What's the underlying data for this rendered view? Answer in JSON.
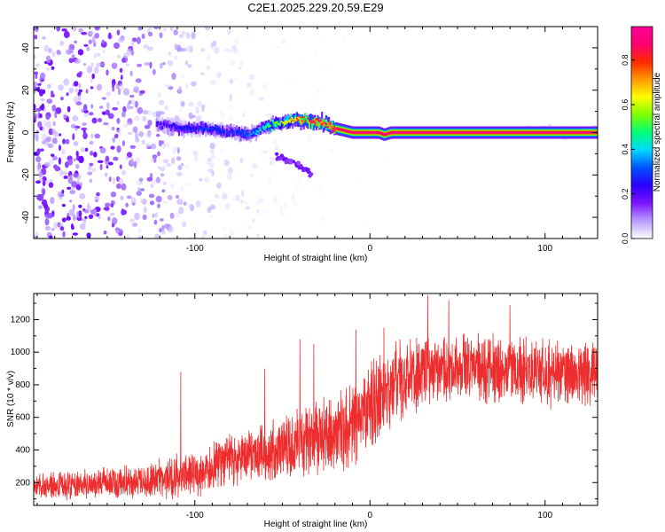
{
  "title": "C2E1.2025.229.20.59.E29",
  "chart_data": [
    {
      "type": "heatmap",
      "xlabel": "Height of straight line (km)",
      "ylabel": "Frequency (Hz)",
      "xlim": [
        -192,
        130
      ],
      "ylim": [
        -50,
        50
      ],
      "x_tick_values": [
        -100,
        0,
        100
      ],
      "x_tick_labels": [
        "-100",
        "0",
        "100"
      ],
      "y_tick_values": [
        -40,
        -20,
        0,
        20,
        40
      ],
      "y_tick_labels": [
        "-40",
        "-20",
        "0",
        "20",
        "40"
      ],
      "colorbar": {
        "label": "Normalized spectral amplitude",
        "range": [
          0,
          0.95
        ],
        "tick_values": [
          0.0,
          0.2,
          0.4,
          0.6,
          0.8
        ],
        "tick_labels": [
          "0.0",
          "0.2",
          "0.4",
          "0.6",
          "0.8"
        ],
        "colormap": [
          "#ffffff",
          "#b99dff",
          "#7a14ff",
          "#2a00ff",
          "#0050ff",
          "#00d8ff",
          "#00ff7a",
          "#7cff00",
          "#ffff00",
          "#ff9a00",
          "#ff2a00",
          "#ff0070",
          "#ff0099"
        ]
      },
      "ridge": {
        "x": [
          -122,
          -115,
          -105,
          -95,
          -85,
          -75,
          -68,
          -62,
          -55,
          -48,
          -42,
          -38,
          -32,
          -25,
          -20,
          -15,
          -10,
          -5,
          0,
          5,
          8,
          12,
          20,
          40,
          70,
          100,
          130
        ],
        "frequency": [
          4,
          3,
          2,
          2,
          1,
          0,
          -1,
          2,
          4,
          5,
          6,
          6,
          5,
          4,
          2,
          1,
          0,
          0,
          0,
          0,
          -1,
          0,
          0,
          0,
          0,
          0,
          0
        ],
        "amplitude": [
          0.22,
          0.25,
          0.28,
          0.3,
          0.3,
          0.32,
          0.35,
          0.45,
          0.55,
          0.65,
          0.78,
          0.82,
          0.85,
          0.85,
          0.88,
          0.9,
          0.9,
          0.92,
          0.92,
          0.92,
          0.92,
          0.92,
          0.92,
          0.92,
          0.92,
          0.92,
          0.92
        ]
      },
      "secondary_trace": {
        "x": [
          -55,
          -50,
          -45,
          -40,
          -36,
          -33
        ],
        "frequency": [
          -11,
          -12,
          -14,
          -16,
          -18,
          -19
        ]
      },
      "background_amplitude_by_x": {
        "x": [
          -192,
          -150,
          -120,
          -100,
          -80,
          -60,
          -40,
          -20,
          0,
          20
        ],
        "amplitude": [
          0.16,
          0.15,
          0.1,
          0.07,
          0.05,
          0.035,
          0.02,
          0.01,
          0.004,
          0.0
        ]
      },
      "grid": false
    },
    {
      "type": "line",
      "color": "#ee2e2e",
      "xlabel": "Height of straight line (km)",
      "ylabel": "SNR (10 * v/v)",
      "xlim": [
        -192,
        130
      ],
      "ylim": [
        60,
        1360
      ],
      "x_tick_values": [
        -100,
        0,
        100
      ],
      "x_tick_labels": [
        "-100",
        "0",
        "100"
      ],
      "y_tick_values": [
        200,
        400,
        600,
        800,
        1000,
        1200
      ],
      "y_tick_labels": [
        "200",
        "400",
        "600",
        "800",
        "1000",
        "1200"
      ],
      "envelope": {
        "x": [
          -192,
          -160,
          -130,
          -120,
          -110,
          -100,
          -90,
          -80,
          -70,
          -60,
          -50,
          -40,
          -30,
          -20,
          -10,
          -5,
          0,
          5,
          10,
          15,
          20,
          25,
          30,
          40,
          60,
          80,
          100,
          130
        ],
        "mean": [
          180,
          190,
          210,
          230,
          240,
          250,
          300,
          330,
          360,
          390,
          420,
          450,
          470,
          500,
          540,
          580,
          660,
          720,
          760,
          800,
          820,
          860,
          890,
          900,
          900,
          890,
          880,
          880
        ],
        "spread": [
          70,
          80,
          90,
          110,
          120,
          120,
          130,
          140,
          150,
          160,
          180,
          190,
          200,
          200,
          210,
          220,
          230,
          240,
          230,
          220,
          210,
          200,
          190,
          180,
          180,
          180,
          180,
          180
        ]
      },
      "spikes": [
        {
          "x": -108,
          "y": 880
        },
        {
          "x": -60,
          "y": 900
        },
        {
          "x": -40,
          "y": 1080
        },
        {
          "x": -32,
          "y": 1050
        },
        {
          "x": -8,
          "y": 1140
        },
        {
          "x": 8,
          "y": 1150
        },
        {
          "x": 33,
          "y": 1350
        },
        {
          "x": 45,
          "y": 1320
        },
        {
          "x": 80,
          "y": 1290
        }
      ],
      "grid": false
    }
  ]
}
